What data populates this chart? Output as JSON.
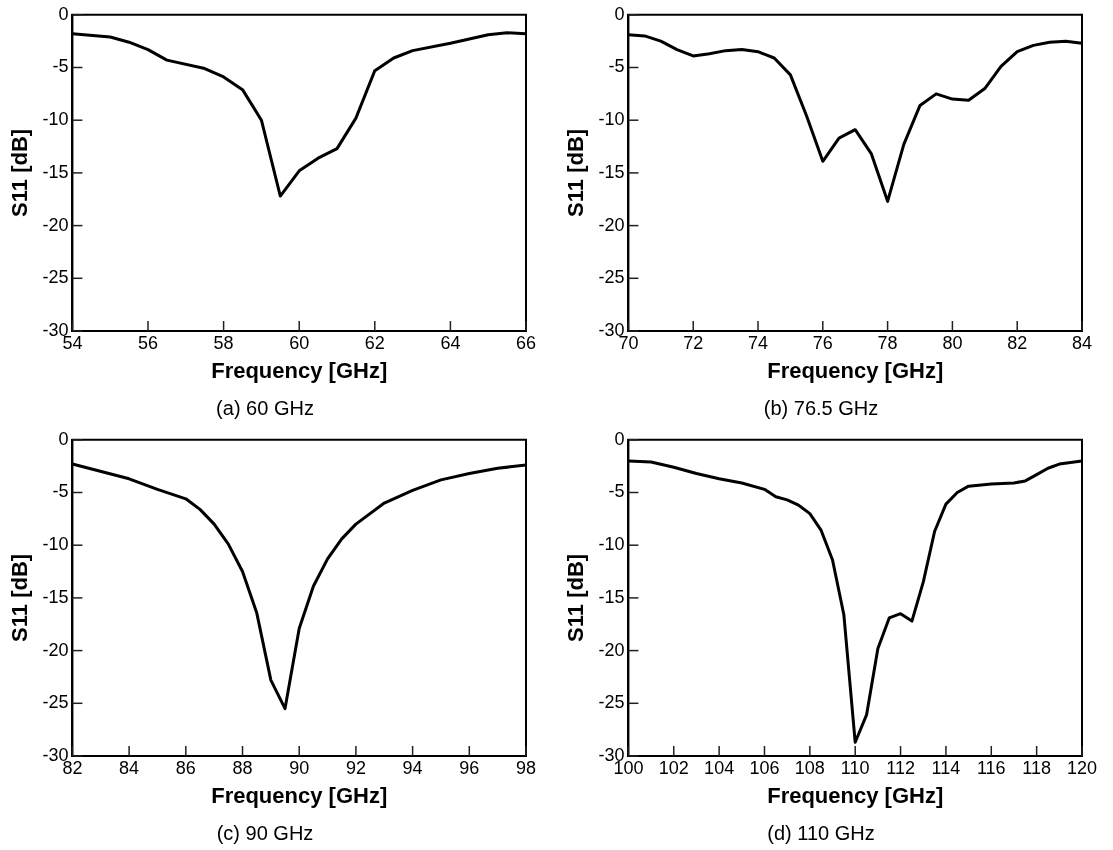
{
  "chart_data": [
    {
      "type": "line",
      "title": "(a) 60 GHz",
      "xlabel": "Frequency [GHz]",
      "ylabel": "S11 [dB]",
      "xlim": [
        54,
        66
      ],
      "xticks": [
        54,
        56,
        58,
        60,
        62,
        64,
        66
      ],
      "ylim": [
        -30,
        0
      ],
      "yticks": [
        -30,
        -25,
        -20,
        -15,
        -10,
        -5,
        0
      ],
      "grid": false,
      "legend": false,
      "marker": "none",
      "line_style": "solid",
      "series": [
        {
          "color": "#000000",
          "x": [
            54,
            55,
            55.5,
            56,
            56.5,
            57.5,
            58,
            58.5,
            59,
            59.5,
            60,
            60.5,
            61,
            61.5,
            62,
            62.5,
            63,
            64,
            65,
            65.5,
            66
          ],
          "values": [
            -1.8,
            -2.1,
            -2.6,
            -3.3,
            -4.3,
            -5.1,
            -5.9,
            -7.1,
            -10,
            -17.2,
            -14.8,
            -13.6,
            -12.7,
            -9.8,
            -5.3,
            -4.1,
            -3.4,
            -2.7,
            -1.9,
            -1.7,
            -1.8
          ]
        }
      ]
    },
    {
      "type": "line",
      "title": "(b) 76.5 GHz",
      "xlabel": "Frequency [GHz]",
      "ylabel": "S11 [dB]",
      "xlim": [
        70,
        84
      ],
      "xticks": [
        70,
        72,
        74,
        76,
        78,
        80,
        82,
        84
      ],
      "ylim": [
        -30,
        0
      ],
      "yticks": [
        -30,
        -25,
        -20,
        -15,
        -10,
        -5,
        0
      ],
      "grid": false,
      "legend": false,
      "marker": "none",
      "line_style": "solid",
      "series": [
        {
          "color": "#000000",
          "x": [
            70,
            70.5,
            71,
            71.5,
            72,
            72.5,
            73,
            73.5,
            74,
            74.5,
            75,
            75.5,
            76,
            76.5,
            77,
            77.5,
            78,
            78.5,
            79,
            79.5,
            80,
            80.5,
            81,
            81.5,
            82,
            82.5,
            83,
            83.5,
            84
          ],
          "values": [
            -1.9,
            -2.0,
            -2.5,
            -3.3,
            -3.9,
            -3.7,
            -3.4,
            -3.3,
            -3.5,
            -4.1,
            -5.7,
            -9.6,
            -13.9,
            -11.7,
            -10.9,
            -13.2,
            -17.7,
            -12.3,
            -8.6,
            -7.5,
            -8.0,
            -8.1,
            -7.0,
            -4.9,
            -3.5,
            -2.9,
            -2.6,
            -2.5,
            -2.7
          ]
        }
      ]
    },
    {
      "type": "line",
      "title": "(c) 90 GHz",
      "xlabel": "Frequency [GHz]",
      "ylabel": "S11 [dB]",
      "xlim": [
        82,
        98
      ],
      "xticks": [
        82,
        84,
        86,
        88,
        90,
        92,
        94,
        96,
        98
      ],
      "ylim": [
        -30,
        0
      ],
      "yticks": [
        -30,
        -25,
        -20,
        -15,
        -10,
        -5,
        0
      ],
      "grid": false,
      "legend": false,
      "marker": "none",
      "line_style": "solid",
      "series": [
        {
          "color": "#000000",
          "x": [
            82,
            84,
            85,
            86,
            86.5,
            87,
            87.5,
            88,
            88.5,
            89,
            89.5,
            90,
            90.5,
            91,
            91.5,
            92,
            93,
            94,
            95,
            96,
            97,
            98
          ],
          "values": [
            -2.3,
            -3.7,
            -4.7,
            -5.6,
            -6.6,
            -8.0,
            -9.9,
            -12.5,
            -16.4,
            -22.8,
            -25.5,
            -17.9,
            -13.9,
            -11.3,
            -9.4,
            -8.0,
            -6.0,
            -4.8,
            -3.8,
            -3.2,
            -2.7,
            -2.4
          ]
        }
      ]
    },
    {
      "type": "line",
      "title": "(d) 110 GHz",
      "xlabel": "Frequency [GHz]",
      "ylabel": "S11 [dB]",
      "xlim": [
        100,
        120
      ],
      "xticks": [
        100,
        102,
        104,
        106,
        108,
        110,
        112,
        114,
        116,
        118,
        120
      ],
      "ylim": [
        -30,
        0
      ],
      "yticks": [
        -30,
        -25,
        -20,
        -15,
        -10,
        -5,
        0
      ],
      "grid": false,
      "legend": false,
      "marker": "none",
      "line_style": "solid",
      "series": [
        {
          "color": "#000000",
          "x": [
            100,
            101,
            102,
            103,
            104,
            105,
            106,
            106.5,
            107,
            107.5,
            108,
            108.5,
            109,
            109.5,
            110,
            110.5,
            111,
            111.5,
            112,
            112.5,
            113,
            113.5,
            114,
            114.5,
            115,
            116,
            117,
            117.5,
            118,
            118.5,
            119,
            120
          ],
          "values": [
            -2.0,
            -2.1,
            -2.6,
            -3.2,
            -3.7,
            -4.1,
            -4.7,
            -5.4,
            -5.7,
            -6.2,
            -7.0,
            -8.6,
            -11.4,
            -16.6,
            -28.7,
            -26.1,
            -19.8,
            -16.9,
            -16.5,
            -17.2,
            -13.5,
            -8.7,
            -6.1,
            -5.0,
            -4.4,
            -4.2,
            -4.1,
            -3.9,
            -3.3,
            -2.7,
            -2.3,
            -2.0
          ]
        }
      ]
    }
  ]
}
